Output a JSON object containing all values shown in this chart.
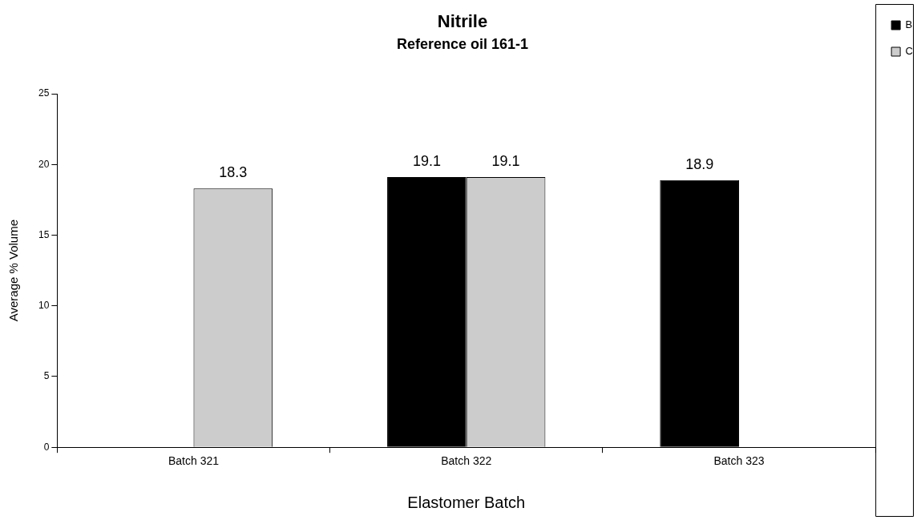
{
  "chart_data": {
    "type": "bar",
    "title": "Nitrile",
    "subtitle": "Reference oil 161-1",
    "xlabel": "Elastomer Batch",
    "ylabel": "Average % Volume",
    "categories": [
      "Batch 321",
      "Batch 322",
      "Batch 323"
    ],
    "series": [
      {
        "name": "B",
        "color": "#000000",
        "values": [
          null,
          19.1,
          18.9
        ]
      },
      {
        "name": "C",
        "color": "#cccccc",
        "values": [
          18.3,
          19.1,
          null
        ]
      }
    ],
    "ylim": [
      0,
      25
    ],
    "yticks": [
      0,
      5,
      10,
      15,
      20,
      25
    ],
    "grid": false,
    "legend": "top right",
    "data_labels": true
  }
}
